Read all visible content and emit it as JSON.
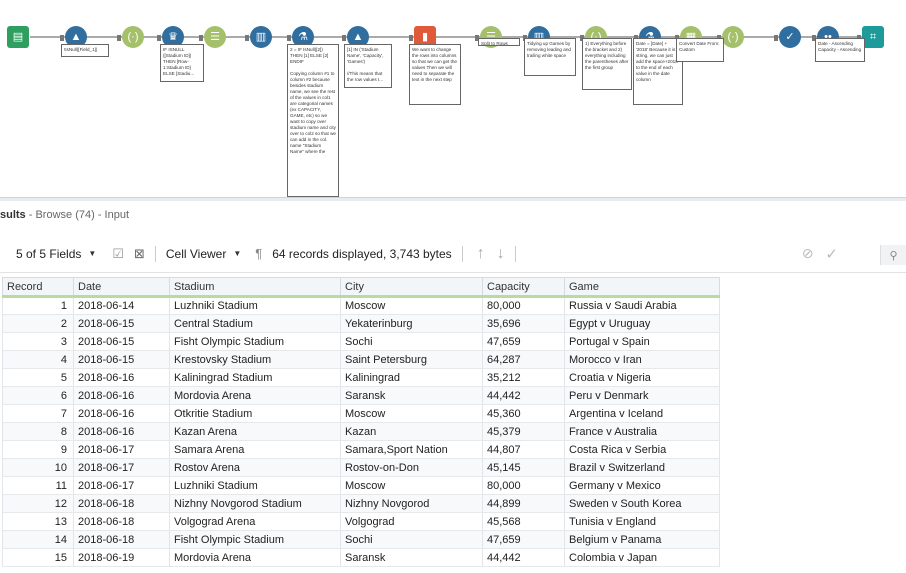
{
  "workflow": {
    "tools": [
      {
        "icon": "input-book-icon",
        "glyph": "▤",
        "color": "#2e9f5f"
      },
      {
        "icon": "formula-icon",
        "glyph": "▲",
        "color": "#2f6e9f"
      },
      {
        "icon": "multi-field-icon",
        "glyph": "(·)",
        "color": "#a5c06a"
      },
      {
        "icon": "crosstab-icon",
        "glyph": "♛",
        "color": "#2f6e9f"
      },
      {
        "icon": "select-icon",
        "glyph": "☰",
        "color": "#a5c06a"
      },
      {
        "icon": "transpose-icon",
        "glyph": "▥",
        "color": "#2f6e9f"
      },
      {
        "icon": "lab-flask-icon",
        "glyph": "⚗",
        "color": "#2f6e9f"
      },
      {
        "icon": "formula-icon",
        "glyph": "▲",
        "color": "#2f6e9f"
      },
      {
        "icon": "text-to-columns-icon",
        "glyph": "▮",
        "color": "#e05a3a"
      },
      {
        "icon": "select-icon",
        "glyph": "☰",
        "color": "#a5c06a"
      },
      {
        "icon": "data-cleansing-icon",
        "glyph": "▥",
        "color": "#2f6e9f"
      },
      {
        "icon": "multi-field-icon",
        "glyph": "(·)",
        "color": "#a5c06a"
      },
      {
        "icon": "lab-flask-icon",
        "glyph": "⚗",
        "color": "#2f6e9f"
      },
      {
        "icon": "datetime-icon",
        "glyph": "▦",
        "color": "#a5c06a"
      },
      {
        "icon": "multi-field-icon",
        "glyph": "(·)",
        "color": "#a5c06a"
      },
      {
        "icon": "check-icon",
        "glyph": "✓",
        "color": "#2f6e9f"
      },
      {
        "icon": "sort-icon",
        "glyph": "••",
        "color": "#2f6e9f"
      },
      {
        "icon": "browse-binoculars-icon",
        "glyph": "⌗",
        "color": "#1d9a9a"
      }
    ],
    "notes": [
      "!IsNull([Field_1])",
      "IF ISNULL ([Stadium ID]) THEN [Row-1:Stadium ID] ELSE [Stadiu...",
      "2 = IF IsNull([2]) THEN [1] ELSE [2] ENDIF\n\nCopying column #1 to column #2 because besides stadium name, we see the rest of the values in col1 are categorial names (ex CAPACITY, GAME, etc) so we want to copy over stadium name and city over to col2 so that we can add in the col. name \"Stadium Name\" where the",
      "[1] IN ('Stadium Name', 'Capacity', 'Games')\n\n//This means that the row values I...",
      "We want to change the rows into columns so that we can get the values Then we will need to separate the text in the next step",
      "Split to Rows",
      "Tidying up Games by removing leading and trailing white space",
      "1) Everything before the bracket and 2) everything including the parentheses after the first group",
      "Date = [Date] + '2018' Because it is a string, we can just add the space+2018 to the end of each value in the date column",
      "Convert Date From: Custom",
      "Date - Ascending Capacity - Ascending"
    ]
  },
  "results": {
    "title_bold": "sults",
    "title_rest": " - Browse (74) - Input",
    "fields_label": "5 of 5 Fields",
    "viewer_label": "Cell Viewer",
    "pilcrow": "¶",
    "records_info": "64 records displayed, 3,743 bytes",
    "columns": [
      "Record",
      "Date",
      "Stadium",
      "City",
      "Capacity",
      "Game"
    ],
    "rows": [
      [
        "1",
        "2018-06-14",
        "Luzhniki Stadium",
        "Moscow",
        "80,000",
        "Russia v Saudi Arabia"
      ],
      [
        "2",
        "2018-06-15",
        "Central Stadium",
        "Yekaterinburg",
        "35,696",
        "Egypt v Uruguay"
      ],
      [
        "3",
        "2018-06-15",
        "Fisht Olympic Stadium",
        "Sochi",
        "47,659",
        "Portugal v Spain"
      ],
      [
        "4",
        "2018-06-15",
        "Krestovsky Stadium",
        "Saint Petersburg",
        "64,287",
        "Morocco v Iran"
      ],
      [
        "5",
        "2018-06-16",
        "Kaliningrad Stadium",
        "Kaliningrad",
        "35,212",
        "Croatia v Nigeria"
      ],
      [
        "6",
        "2018-06-16",
        "Mordovia Arena",
        "Saransk",
        "44,442",
        "Peru v Denmark"
      ],
      [
        "7",
        "2018-06-16",
        "Otkritie Stadium",
        "Moscow",
        "45,360",
        "Argentina v Iceland"
      ],
      [
        "8",
        "2018-06-16",
        "Kazan Arena",
        "Kazan",
        "45,379",
        "France v Australia"
      ],
      [
        "9",
        "2018-06-17",
        "Samara Arena",
        "Samara,Sport Nation",
        "44,807",
        "Costa Rica v Serbia"
      ],
      [
        "10",
        "2018-06-17",
        "Rostov Arena",
        "Rostov-on-Don",
        "45,145",
        "Brazil v Switzerland"
      ],
      [
        "11",
        "2018-06-17",
        "Luzhniki Stadium",
        "Moscow",
        "80,000",
        "Germany v Mexico"
      ],
      [
        "12",
        "2018-06-18",
        "Nizhny Novgorod Stadium",
        "Nizhny Novgorod",
        "44,899",
        "Sweden v South Korea"
      ],
      [
        "13",
        "2018-06-18",
        "Volgograd Arena",
        "Volgograd",
        "45,568",
        "Tunisia v England"
      ],
      [
        "14",
        "2018-06-18",
        "Fisht Olympic Stadium",
        "Sochi",
        "47,659",
        "Belgium v Panama"
      ],
      [
        "15",
        "2018-06-19",
        "Mordovia Arena",
        "Saransk",
        "44,442",
        "Colombia v Japan"
      ]
    ]
  }
}
